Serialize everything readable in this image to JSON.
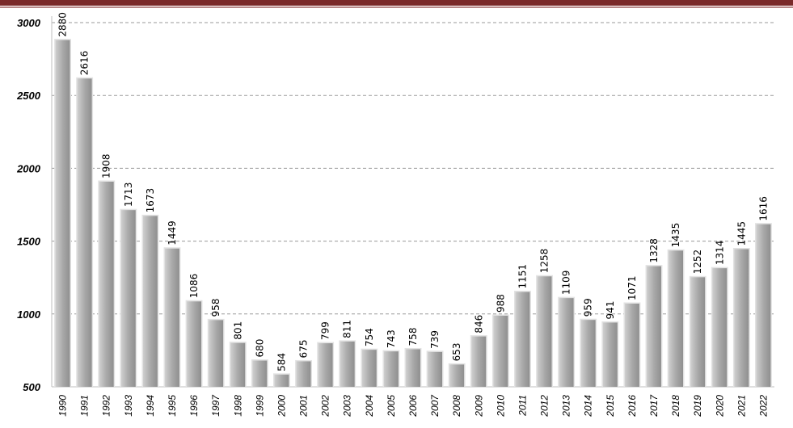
{
  "chart_data": {
    "type": "bar",
    "title": "",
    "xlabel": "",
    "ylabel": "",
    "ylim": [
      500,
      3000
    ],
    "yticks": [
      500,
      1000,
      1500,
      2000,
      2500,
      3000
    ],
    "grid": true,
    "legend": "none",
    "colors": {
      "bar": "#a9a9a9",
      "bar_light": "#cfcfcf",
      "grid": "#9a9a9a",
      "accent": "#7a2a2a"
    },
    "categories": [
      "1990",
      "1991",
      "1992",
      "1993",
      "1994",
      "1995",
      "1996",
      "1997",
      "1998",
      "1999",
      "2000",
      "2001",
      "2002",
      "2003",
      "2004",
      "2005",
      "2006",
      "2007",
      "2008",
      "2009",
      "2010",
      "2011",
      "2012",
      "2013",
      "2014",
      "2015",
      "2016",
      "2017",
      "2018",
      "2019",
      "2020",
      "2021",
      "2022"
    ],
    "values": [
      2880,
      2616,
      1908,
      1713,
      1673,
      1449,
      1086,
      958,
      801,
      680,
      584,
      675,
      799,
      811,
      754,
      743,
      758,
      739,
      653,
      846,
      988,
      1151,
      1258,
      1109,
      959,
      941,
      1071,
      1328,
      1435,
      1252,
      1314,
      1445,
      1616
    ]
  }
}
